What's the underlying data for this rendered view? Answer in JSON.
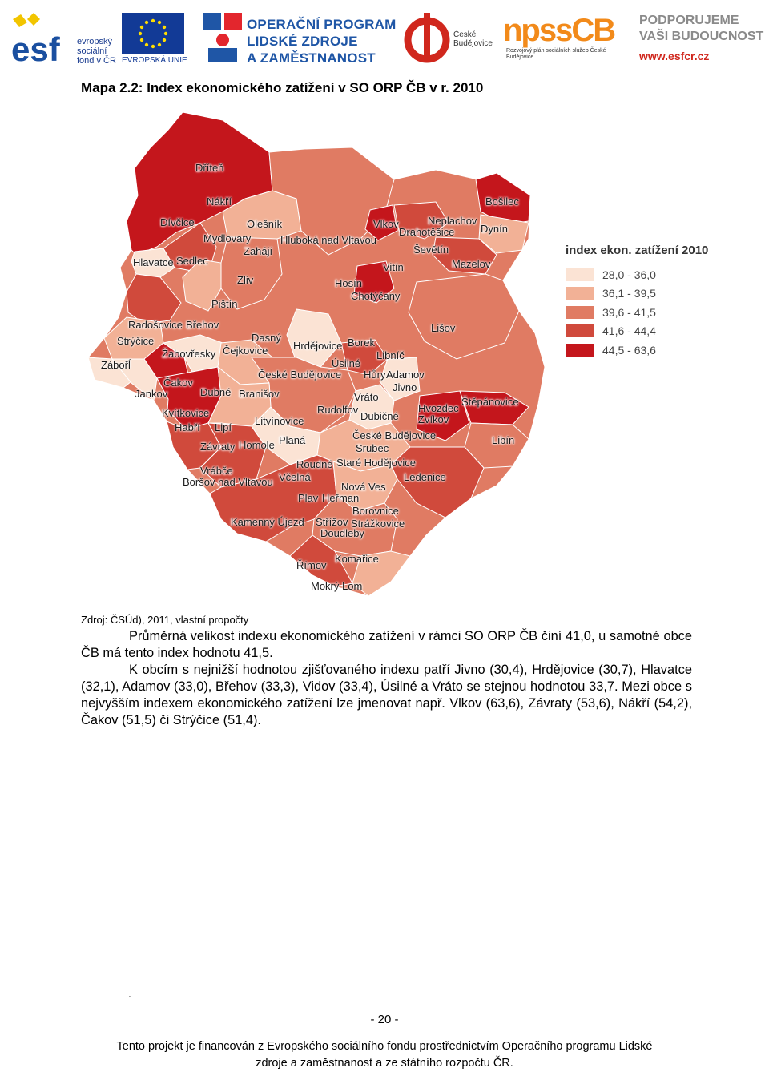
{
  "header": {
    "esf_logo_letters": "esf",
    "esf_text": "evropský sociální fond v ČR",
    "eu_text": "EVROPSKÁ UNIE",
    "op_text": [
      "OPERAČNÍ PROGRAM",
      "LIDSKÉ ZDROJE",
      "A ZAMĚSTNANOST"
    ],
    "cb_city": "České Budějovice",
    "npss_logo": "npssCB",
    "npss_sub": "Rozvojový plán sociálních služeb České Budějovice",
    "podporujeme": [
      "PODPORUJEME",
      "VAŠI BUDOUCNOST"
    ],
    "url": "www.esfcr.cz"
  },
  "map_title": "Mapa 2.2: Index ekonomického zatížení v SO ORP ČB v r. 2010",
  "legend": {
    "title": "index ekon. zatížení 2010",
    "classes": [
      {
        "label": "28,0 - 36,0",
        "color": "#fbe3d4"
      },
      {
        "label": "36,1 - 39,5",
        "color": "#f2b196"
      },
      {
        "label": "39,6 - 41,5",
        "color": "#e07b63"
      },
      {
        "label": "41,6 - 44,4",
        "color": "#d04a3c"
      },
      {
        "label": "44,5 - 63,6",
        "color": "#c4161c"
      }
    ]
  },
  "map_places": [
    "Dříteň",
    "Nákří",
    "Dívčice",
    "Olešník",
    "Mydlovary",
    "Hluboká nad Vltavou",
    "Zahájí",
    "Hlavatce",
    "Sedlec",
    "Vlkov",
    "Neplachov",
    "Bošilec",
    "Drahotěšice",
    "Dynín",
    "Ševětín",
    "Vitín",
    "Mazelov",
    "Zliv",
    "Hosín",
    "Chotýčany",
    "Pištín",
    "Radošovice",
    "Břehov",
    "Lišov",
    "Strýčice",
    "Dasný",
    "Hrdějovice",
    "Borek",
    "Žabovřesky",
    "Čejkovice",
    "Libníč",
    "Úsilné",
    "Zábořĺ",
    "České Budějovice",
    "Hůry",
    "Adamov",
    "Jivno",
    "Čakov",
    "Jankov",
    "Dubné",
    "Branišov",
    "Vráto",
    "Štěpánovice",
    "Rudolfov",
    "Dubičné",
    "Hvozdec",
    "Zvíkov",
    "Kvítkovice",
    "Habří",
    "Lipí",
    "Litvínovice",
    "České Budějovice",
    "Libín",
    "Planá",
    "Závraty",
    "Homole",
    "Srubec",
    "Vrábče",
    "Roudné",
    "Staré Hodějovice",
    "Boršov nad Vltavou",
    "Včelná",
    "Ledenice",
    "Nová Ves",
    "Plav",
    "Heřman",
    "Borovnice",
    "Kamenný Újezd",
    "Střížov",
    "Strážkovice",
    "Doudleby",
    "Komařice",
    "Římov",
    "Mokrý Lom"
  ],
  "source": "Zdroj: ČSÚd), 2011, vlastní propočty",
  "paragraph1": "Průměrná velikost indexu ekonomického zatížení v rámci SO ORP ČB činí 41,0, u samotné obce ČB má tento index hodnotu 41,5.",
  "paragraph2": "K obcím s nejnižší hodnotou zjišťovaného indexu patří Jivno (30,4), Hrdějovice (30,7), Hlavatce (32,1), Adamov (33,0), Břehov (33,3), Vidov (33,4), Úsilné a Vráto se stejnou hodnotou 33,7. Mezi obce s nejvyšším indexem ekonomického zatížení lze jmenovat např. Vlkov (63,6), Závraty (53,6), Nákří (54,2), Čakov (51,5) či  Strýčice (51,4).",
  "dot": ".",
  "page_number": "- 20 -",
  "footer": [
    "Tento projekt je financován z Evropského sociálního fondu prostřednictvím Operačního programu Lidské",
    "zdroje a zaměstnanost a ze státního rozpočtu ČR."
  ]
}
